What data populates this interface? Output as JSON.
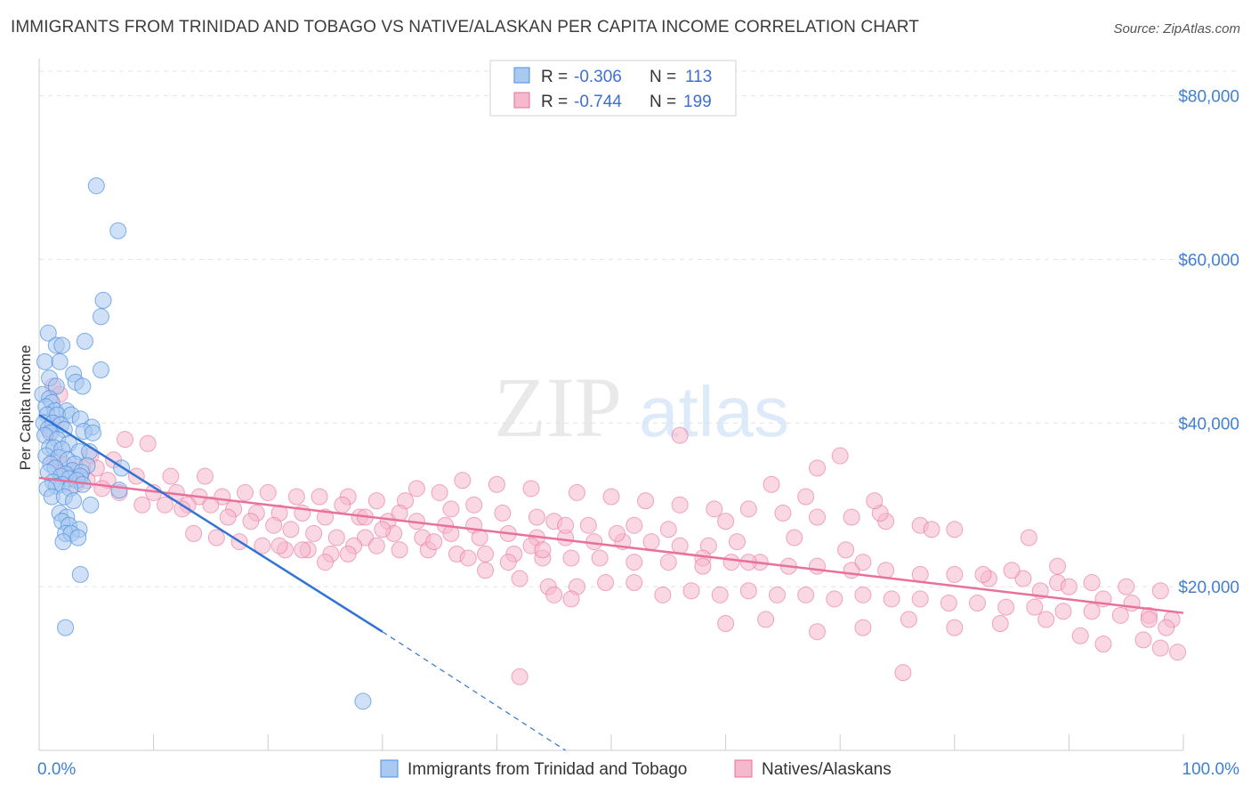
{
  "header": {
    "title": "IMMIGRANTS FROM TRINIDAD AND TOBAGO VS NATIVE/ALASKAN PER CAPITA INCOME CORRELATION CHART",
    "source": "Source: ZipAtlas.com"
  },
  "watermark": "ZIPatlas",
  "colors": {
    "blue": "#4a8fe0",
    "blue_fill": "#a9c9f0",
    "pink": "#e8709a",
    "pink_fill": "#f5b8cc",
    "tick_blue": "#3f7fd4"
  },
  "chart_data": {
    "type": "scatter",
    "title": "IMMIGRANTS FROM TRINIDAD AND TOBAGO VS NATIVE/ALASKAN PER CAPITA INCOME CORRELATION CHART",
    "xlabel": "",
    "ylabel": "Per Capita Income",
    "xlim": [
      0,
      100
    ],
    "ylim": [
      0,
      83000
    ],
    "x_tick_labels": [
      "0.0%",
      "100.0%"
    ],
    "y_ticks": [
      20000,
      40000,
      60000,
      80000
    ],
    "y_tick_labels": [
      "$20,000",
      "$40,000",
      "$60,000",
      "$80,000"
    ],
    "grid": true,
    "legend": {
      "placement": "top-center",
      "entries": [
        {
          "r_label": "R =",
          "r_value": "-0.306",
          "n_label": "N =",
          "n_value": "113"
        },
        {
          "r_label": "R =",
          "r_value": "-0.744",
          "n_label": "N =",
          "n_value": "199"
        }
      ]
    },
    "bottom_legend": [
      "Immigrants from Trinidad and Tobago",
      "Natives/Alaskans"
    ],
    "series": [
      {
        "name": "Immigrants from Trinidad and Tobago",
        "color": "#4a8fe0",
        "trendline": {
          "x": [
            0,
            30,
            46
          ],
          "y": [
            41000,
            14500,
            0
          ],
          "solid_until": 30
        },
        "points": [
          [
            5.0,
            69000
          ],
          [
            6.9,
            63500
          ],
          [
            5.6,
            55000
          ],
          [
            5.4,
            53000
          ],
          [
            0.8,
            51000
          ],
          [
            4.0,
            50000
          ],
          [
            1.5,
            49500
          ],
          [
            2.0,
            49500
          ],
          [
            0.5,
            47500
          ],
          [
            1.8,
            47500
          ],
          [
            5.4,
            46500
          ],
          [
            3.0,
            46000
          ],
          [
            0.9,
            45500
          ],
          [
            3.2,
            45000
          ],
          [
            1.5,
            44500
          ],
          [
            3.8,
            44500
          ],
          [
            0.3,
            43500
          ],
          [
            0.9,
            43000
          ],
          [
            1.1,
            42500
          ],
          [
            0.6,
            42000
          ],
          [
            1.4,
            41500
          ],
          [
            2.4,
            41500
          ],
          [
            0.7,
            41000
          ],
          [
            1.6,
            41000
          ],
          [
            2.8,
            41000
          ],
          [
            3.6,
            40500
          ],
          [
            0.4,
            40000
          ],
          [
            1.2,
            40000
          ],
          [
            1.9,
            39800
          ],
          [
            4.6,
            39500
          ],
          [
            0.8,
            39300
          ],
          [
            2.2,
            39200
          ],
          [
            3.9,
            39000
          ],
          [
            1.0,
            38800
          ],
          [
            4.7,
            38800
          ],
          [
            0.5,
            38500
          ],
          [
            1.6,
            38000
          ],
          [
            2.6,
            37500
          ],
          [
            0.9,
            37000
          ],
          [
            1.3,
            37000
          ],
          [
            2.0,
            36800
          ],
          [
            3.5,
            36500
          ],
          [
            4.4,
            36500
          ],
          [
            0.6,
            36000
          ],
          [
            1.7,
            35800
          ],
          [
            2.5,
            35500
          ],
          [
            3.1,
            35000
          ],
          [
            1.0,
            35000
          ],
          [
            4.2,
            34800
          ],
          [
            1.4,
            34500
          ],
          [
            2.9,
            34200
          ],
          [
            3.7,
            34000
          ],
          [
            0.8,
            34000
          ],
          [
            2.3,
            33800
          ],
          [
            7.2,
            34500
          ],
          [
            3.6,
            33500
          ],
          [
            1.9,
            33500
          ],
          [
            2.6,
            33200
          ],
          [
            3.3,
            33000
          ],
          [
            1.2,
            32800
          ],
          [
            2.0,
            32500
          ],
          [
            3.8,
            32500
          ],
          [
            1.5,
            32300
          ],
          [
            2.7,
            32000
          ],
          [
            0.7,
            32000
          ],
          [
            7.0,
            31800
          ],
          [
            1.1,
            31000
          ],
          [
            2.2,
            31000
          ],
          [
            3.0,
            30500
          ],
          [
            4.5,
            30000
          ],
          [
            1.8,
            29000
          ],
          [
            2.4,
            28500
          ],
          [
            2.0,
            28000
          ],
          [
            2.6,
            27500
          ],
          [
            3.5,
            27000
          ],
          [
            2.3,
            26500
          ],
          [
            2.8,
            26500
          ],
          [
            3.4,
            26000
          ],
          [
            2.1,
            25500
          ],
          [
            3.6,
            21500
          ],
          [
            2.3,
            15000
          ],
          [
            28.3,
            6000
          ]
        ]
      },
      {
        "name": "Natives/Alaskans",
        "color": "#e8709a",
        "trendline": {
          "x": [
            0,
            100
          ],
          "y": [
            33300,
            16800
          ]
        },
        "points": [
          [
            1.2,
            44500
          ],
          [
            1.8,
            43500
          ],
          [
            1.5,
            40000
          ],
          [
            0.9,
            39000
          ],
          [
            7.5,
            38000
          ],
          [
            9.5,
            37500
          ],
          [
            4.5,
            36000
          ],
          [
            6.5,
            35500
          ],
          [
            1.3,
            35500
          ],
          [
            2.2,
            35000
          ],
          [
            3.8,
            34500
          ],
          [
            5.0,
            34500
          ],
          [
            2.8,
            33500
          ],
          [
            4.2,
            33000
          ],
          [
            6.0,
            33000
          ],
          [
            8.5,
            33500
          ],
          [
            11.5,
            33500
          ],
          [
            14.5,
            33500
          ],
          [
            3.2,
            32500
          ],
          [
            5.5,
            32000
          ],
          [
            7.0,
            31500
          ],
          [
            10.0,
            31500
          ],
          [
            12.0,
            31500
          ],
          [
            14.0,
            31000
          ],
          [
            16.0,
            31000
          ],
          [
            18.0,
            31500
          ],
          [
            20.0,
            31500
          ],
          [
            22.5,
            31000
          ],
          [
            24.5,
            31000
          ],
          [
            27.0,
            31000
          ],
          [
            29.5,
            30500
          ],
          [
            32.0,
            30500
          ],
          [
            9.0,
            30000
          ],
          [
            11.0,
            30000
          ],
          [
            13.0,
            30000
          ],
          [
            15.0,
            30000
          ],
          [
            17.0,
            29500
          ],
          [
            19.0,
            29000
          ],
          [
            21.0,
            29000
          ],
          [
            23.0,
            29000
          ],
          [
            25.0,
            28500
          ],
          [
            28.0,
            28500
          ],
          [
            30.5,
            28000
          ],
          [
            33.0,
            28000
          ],
          [
            35.5,
            27500
          ],
          [
            38.0,
            27500
          ],
          [
            12.5,
            29500
          ],
          [
            16.5,
            28500
          ],
          [
            18.5,
            28000
          ],
          [
            20.5,
            27500
          ],
          [
            22.0,
            27000
          ],
          [
            24.0,
            26500
          ],
          [
            26.0,
            26000
          ],
          [
            28.5,
            26000
          ],
          [
            31.0,
            26500
          ],
          [
            33.5,
            26000
          ],
          [
            36.0,
            26500
          ],
          [
            38.5,
            26000
          ],
          [
            41.0,
            26500
          ],
          [
            43.5,
            26000
          ],
          [
            46.0,
            26000
          ],
          [
            48.5,
            25500
          ],
          [
            51.0,
            25500
          ],
          [
            53.5,
            25500
          ],
          [
            56.0,
            25000
          ],
          [
            58.5,
            25000
          ],
          [
            61.0,
            25500
          ],
          [
            13.5,
            26500
          ],
          [
            15.5,
            26000
          ],
          [
            17.5,
            25500
          ],
          [
            19.5,
            25000
          ],
          [
            21.5,
            24500
          ],
          [
            23.5,
            24500
          ],
          [
            25.5,
            24000
          ],
          [
            27.5,
            25000
          ],
          [
            29.5,
            25000
          ],
          [
            31.5,
            24500
          ],
          [
            34.0,
            24500
          ],
          [
            36.5,
            24000
          ],
          [
            39.0,
            24000
          ],
          [
            41.5,
            24000
          ],
          [
            44.0,
            23500
          ],
          [
            46.5,
            23500
          ],
          [
            49.0,
            23500
          ],
          [
            52.0,
            23000
          ],
          [
            55.0,
            23000
          ],
          [
            58.0,
            23500
          ],
          [
            60.5,
            23000
          ],
          [
            63.0,
            23000
          ],
          [
            65.5,
            22500
          ],
          [
            68.0,
            22500
          ],
          [
            71.0,
            22000
          ],
          [
            74.0,
            22000
          ],
          [
            77.0,
            21500
          ],
          [
            80.0,
            21500
          ],
          [
            83.0,
            21000
          ],
          [
            86.0,
            21000
          ],
          [
            89.0,
            20500
          ],
          [
            92.0,
            20500
          ],
          [
            95.0,
            20000
          ],
          [
            98.0,
            19500
          ],
          [
            37.0,
            33000
          ],
          [
            40.0,
            32500
          ],
          [
            43.0,
            32000
          ],
          [
            47.0,
            31500
          ],
          [
            50.0,
            31000
          ],
          [
            53.0,
            30500
          ],
          [
            56.0,
            30000
          ],
          [
            59.0,
            29500
          ],
          [
            62.0,
            29500
          ],
          [
            65.0,
            29000
          ],
          [
            68.0,
            28500
          ],
          [
            71.0,
            28500
          ],
          [
            74.0,
            28000
          ],
          [
            77.0,
            27500
          ],
          [
            80.0,
            27000
          ],
          [
            45.0,
            28000
          ],
          [
            48.0,
            27500
          ],
          [
            52.0,
            27500
          ],
          [
            55.0,
            27000
          ],
          [
            35.0,
            31500
          ],
          [
            38.0,
            30000
          ],
          [
            40.5,
            29000
          ],
          [
            43.5,
            28500
          ],
          [
            46.0,
            27500
          ],
          [
            50.5,
            26500
          ],
          [
            42.0,
            21000
          ],
          [
            44.5,
            20000
          ],
          [
            47.0,
            20000
          ],
          [
            49.5,
            20500
          ],
          [
            52.0,
            20500
          ],
          [
            54.5,
            19000
          ],
          [
            57.0,
            19500
          ],
          [
            59.5,
            19000
          ],
          [
            62.0,
            19500
          ],
          [
            64.5,
            19000
          ],
          [
            67.0,
            19000
          ],
          [
            69.5,
            18500
          ],
          [
            72.0,
            19000
          ],
          [
            74.5,
            18500
          ],
          [
            77.0,
            18500
          ],
          [
            79.5,
            18000
          ],
          [
            82.0,
            18000
          ],
          [
            84.5,
            17500
          ],
          [
            87.0,
            17500
          ],
          [
            89.5,
            17000
          ],
          [
            92.0,
            17000
          ],
          [
            94.5,
            16500
          ],
          [
            97.0,
            16500
          ],
          [
            99.0,
            16000
          ],
          [
            45.0,
            19000
          ],
          [
            46.5,
            18500
          ],
          [
            60.0,
            15500
          ],
          [
            63.5,
            16000
          ],
          [
            68.0,
            14500
          ],
          [
            72.0,
            15000
          ],
          [
            76.0,
            16000
          ],
          [
            80.0,
            15000
          ],
          [
            84.0,
            15500
          ],
          [
            88.0,
            16000
          ],
          [
            91.0,
            14000
          ],
          [
            93.0,
            13000
          ],
          [
            96.5,
            13500
          ],
          [
            98.0,
            12500
          ],
          [
            99.5,
            12000
          ],
          [
            42.0,
            9000
          ],
          [
            75.5,
            9500
          ],
          [
            56.0,
            38500
          ],
          [
            70.0,
            36000
          ],
          [
            68.0,
            34500
          ],
          [
            73.5,
            29000
          ],
          [
            86.5,
            26000
          ],
          [
            89.0,
            22500
          ],
          [
            78.0,
            27000
          ],
          [
            67.0,
            31000
          ],
          [
            64.0,
            32500
          ],
          [
            66.0,
            26000
          ],
          [
            73.0,
            30500
          ],
          [
            60.0,
            28000
          ],
          [
            58.0,
            22500
          ],
          [
            62.0,
            23000
          ],
          [
            70.5,
            24500
          ],
          [
            72.0,
            23000
          ],
          [
            82.5,
            21500
          ],
          [
            85.0,
            22000
          ],
          [
            87.5,
            19500
          ],
          [
            90.0,
            20000
          ],
          [
            93.0,
            18500
          ],
          [
            95.5,
            18000
          ],
          [
            97.0,
            16000
          ],
          [
            98.5,
            15000
          ],
          [
            33.0,
            32000
          ],
          [
            36.0,
            29500
          ],
          [
            37.5,
            23500
          ],
          [
            39.0,
            22000
          ],
          [
            41.0,
            23000
          ],
          [
            43.0,
            25000
          ],
          [
            44.0,
            24500
          ],
          [
            30.0,
            27000
          ],
          [
            26.5,
            30000
          ],
          [
            23.0,
            24500
          ],
          [
            21.0,
            25000
          ],
          [
            25.0,
            23000
          ],
          [
            27.0,
            24000
          ],
          [
            28.5,
            28500
          ],
          [
            31.5,
            29000
          ],
          [
            34.5,
            25500
          ]
        ]
      }
    ]
  }
}
